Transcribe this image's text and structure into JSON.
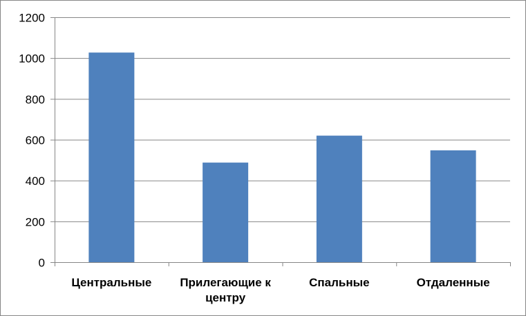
{
  "chart_data": {
    "type": "bar",
    "title": "",
    "xlabel": "",
    "ylabel": "",
    "categories": [
      [
        "Центральные"
      ],
      [
        "Прилегающие к",
        "центру"
      ],
      [
        "Спальные"
      ],
      [
        "Отдаленные"
      ]
    ],
    "values": [
      1027,
      488,
      620,
      548
    ],
    "ylim": [
      0,
      1200
    ],
    "yticks": [
      "0",
      "200",
      "400",
      "600",
      "800",
      "1000",
      "1200"
    ],
    "grid": true,
    "legend": "none",
    "bar_color": "#4F81BD",
    "grid_color": "#868686"
  }
}
